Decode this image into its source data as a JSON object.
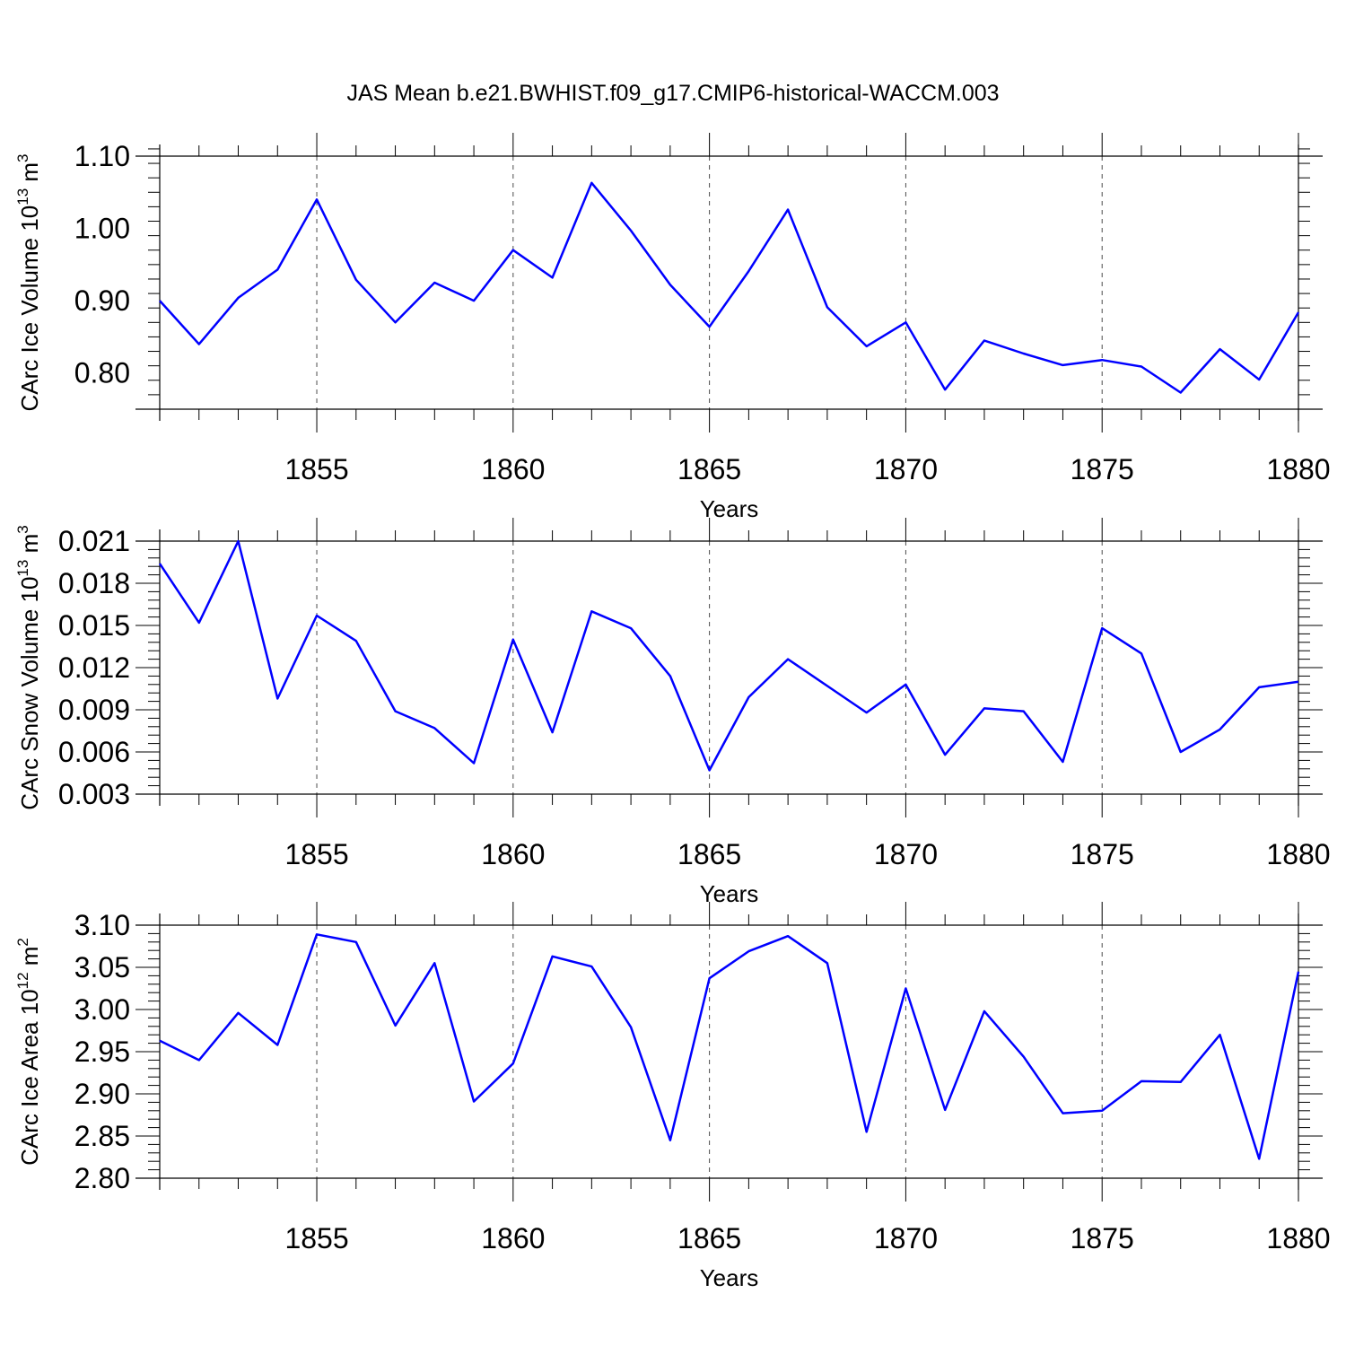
{
  "title": "JAS Mean b.e21.BWHIST.f09_g17.CMIP6-historical-WACCM.003",
  "colors": {
    "line": "#0000ff",
    "axis": "#000000",
    "background": "#ffffff"
  },
  "chart_data": [
    {
      "type": "line",
      "ylabel": "CArc Ice Volume 10",
      "ylabel_sup": "13",
      "ylabel_unit": "m",
      "ylabel_unit_sup": "3",
      "xlabel": "Years",
      "xlim": [
        1851,
        1880
      ],
      "ylim": [
        0.75,
        1.1
      ],
      "xticks": [
        1855,
        1860,
        1865,
        1870,
        1875,
        1880
      ],
      "xtick_labels": [
        "1855",
        "1860",
        "1865",
        "1870",
        "1875",
        "1880"
      ],
      "yticks": [
        0.8,
        0.9,
        1.0,
        1.1
      ],
      "ytick_labels": [
        "0.80",
        "0.90",
        "1.00",
        "1.10"
      ],
      "ymajor_step": 0.1,
      "yminor_step": 0.02,
      "grid": "dashed vertical at major x ticks",
      "x": [
        1851,
        1852,
        1853,
        1854,
        1855,
        1856,
        1857,
        1858,
        1859,
        1860,
        1861,
        1862,
        1863,
        1864,
        1865,
        1866,
        1867,
        1868,
        1869,
        1870,
        1871,
        1872,
        1873,
        1874,
        1875,
        1876,
        1877,
        1878,
        1879,
        1880
      ],
      "values": [
        0.9,
        0.84,
        0.904,
        0.943,
        1.04,
        0.929,
        0.87,
        0.925,
        0.9,
        0.97,
        0.932,
        1.063,
        0.997,
        0.922,
        0.864,
        0.941,
        1.026,
        0.891,
        0.837,
        0.87,
        0.777,
        0.845,
        0.827,
        0.811,
        0.818,
        0.809,
        0.773,
        0.833,
        0.791,
        0.884
      ]
    },
    {
      "type": "line",
      "ylabel": "CArc Snow Volume 10",
      "ylabel_sup": "13",
      "ylabel_unit": "m",
      "ylabel_unit_sup": "3",
      "xlabel": "Years",
      "xlim": [
        1851,
        1880
      ],
      "ylim": [
        0.003,
        0.021
      ],
      "xticks": [
        1855,
        1860,
        1865,
        1870,
        1875,
        1880
      ],
      "xtick_labels": [
        "1855",
        "1860",
        "1865",
        "1870",
        "1875",
        "1880"
      ],
      "yticks": [
        0.003,
        0.006,
        0.009,
        0.012,
        0.015,
        0.018,
        0.021
      ],
      "ytick_labels": [
        "0.003",
        "0.006",
        "0.009",
        "0.012",
        "0.015",
        "0.018",
        "0.021"
      ],
      "ymajor_step": 0.003,
      "yminor_step": 0.0006,
      "grid": "dashed vertical at major x ticks",
      "x": [
        1851,
        1852,
        1853,
        1854,
        1855,
        1856,
        1857,
        1858,
        1859,
        1860,
        1861,
        1862,
        1863,
        1864,
        1865,
        1866,
        1867,
        1868,
        1869,
        1870,
        1871,
        1872,
        1873,
        1874,
        1875,
        1876,
        1877,
        1878,
        1879,
        1880
      ],
      "values": [
        0.0194,
        0.0152,
        0.021,
        0.0098,
        0.0157,
        0.0139,
        0.0089,
        0.0077,
        0.0052,
        0.014,
        0.0074,
        0.016,
        0.0148,
        0.0114,
        0.0047,
        0.0099,
        0.0126,
        0.0107,
        0.0088,
        0.0108,
        0.0058,
        0.0091,
        0.0089,
        0.0053,
        0.0148,
        0.013,
        0.006,
        0.0076,
        0.0106,
        0.011
      ]
    },
    {
      "type": "line",
      "ylabel": "CArc Ice Area 10",
      "ylabel_sup": "12",
      "ylabel_unit": "m",
      "ylabel_unit_sup": "2",
      "xlabel": "Years",
      "xlim": [
        1851,
        1880
      ],
      "ylim": [
        2.8,
        3.1
      ],
      "xticks": [
        1855,
        1860,
        1865,
        1870,
        1875,
        1880
      ],
      "xtick_labels": [
        "1855",
        "1860",
        "1865",
        "1870",
        "1875",
        "1880"
      ],
      "yticks": [
        2.8,
        2.85,
        2.9,
        2.95,
        3.0,
        3.05,
        3.1
      ],
      "ytick_labels": [
        "2.80",
        "2.85",
        "2.90",
        "2.95",
        "3.00",
        "3.05",
        "3.10"
      ],
      "ymajor_step": 0.05,
      "yminor_step": 0.01,
      "grid": "dashed vertical at major x ticks",
      "x": [
        1851,
        1852,
        1853,
        1854,
        1855,
        1856,
        1857,
        1858,
        1859,
        1860,
        1861,
        1862,
        1863,
        1864,
        1865,
        1866,
        1867,
        1868,
        1869,
        1870,
        1871,
        1872,
        1873,
        1874,
        1875,
        1876,
        1877,
        1878,
        1879,
        1880
      ],
      "values": [
        2.963,
        2.94,
        2.996,
        2.958,
        3.089,
        3.08,
        2.981,
        3.055,
        2.891,
        2.936,
        3.063,
        3.051,
        2.979,
        2.845,
        3.037,
        3.069,
        3.087,
        3.055,
        2.855,
        3.025,
        2.881,
        2.998,
        2.944,
        2.877,
        2.88,
        2.915,
        2.914,
        2.97,
        2.823,
        3.045
      ]
    }
  ]
}
